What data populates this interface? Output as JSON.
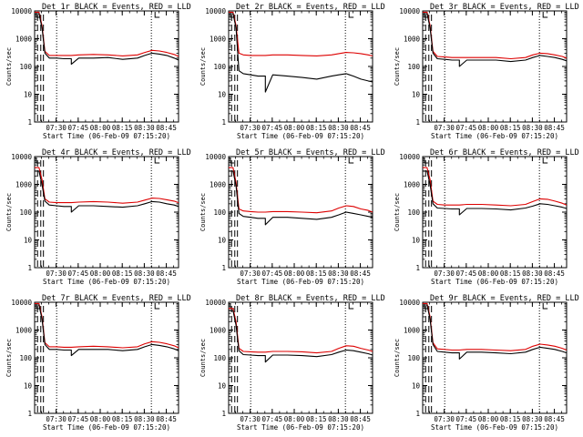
{
  "colors": {
    "events": "#000000",
    "lld": "#dd0000",
    "background": "#ffffff",
    "axis": "#000000"
  },
  "common": {
    "ylabel": "Counts/sec",
    "xlabel": "Start Time (06-Feb-09 07:15:20)",
    "x_tick_labels": [
      "07:30",
      "07:45",
      "08:00",
      "08:15",
      "08:30",
      "08:45"
    ],
    "y_tick_labels": [
      "1",
      "10",
      "100",
      "1000",
      "10000"
    ]
  },
  "chart_data": [
    {
      "type": "line",
      "title": "Det 1r BLACK = Events, RED = LLD",
      "scale": "log",
      "ylim": [
        1,
        10000
      ],
      "xlim": [
        "07:15",
        "08:53"
      ],
      "x_minutes": [
        0,
        3,
        5,
        7,
        10,
        15,
        20,
        25,
        30,
        40,
        50,
        60,
        70,
        75,
        80,
        85,
        90,
        95,
        98
      ],
      "series": [
        {
          "name": "Events",
          "color": "#000000",
          "values": [
            8000,
            8000,
            2500,
            300,
            200,
            200,
            190,
            120,
            200,
            200,
            210,
            180,
            200,
            250,
            300,
            280,
            250,
            200,
            170
          ]
        },
        {
          "name": "LLD",
          "color": "#dd0000",
          "values": [
            9000,
            9000,
            3000,
            350,
            250,
            250,
            250,
            250,
            260,
            270,
            260,
            240,
            260,
            320,
            380,
            360,
            320,
            270,
            230
          ]
        }
      ]
    },
    {
      "type": "line",
      "title": "Det 2r BLACK = Events, RED = LLD",
      "scale": "log",
      "ylim": [
        1,
        10000
      ],
      "xlim": [
        "07:15",
        "08:53"
      ],
      "x_minutes": [
        0,
        3,
        5,
        7,
        10,
        15,
        20,
        25,
        30,
        40,
        50,
        60,
        70,
        75,
        80,
        85,
        90,
        95,
        98
      ],
      "series": [
        {
          "name": "Events",
          "color": "#000000",
          "values": [
            8000,
            8000,
            2500,
            70,
            55,
            50,
            45,
            12,
            50,
            45,
            40,
            35,
            45,
            50,
            55,
            45,
            35,
            30,
            28
          ]
        },
        {
          "name": "LLD",
          "color": "#dd0000",
          "values": [
            9000,
            9000,
            3000,
            300,
            260,
            250,
            250,
            250,
            260,
            260,
            250,
            240,
            260,
            290,
            320,
            310,
            290,
            260,
            240
          ]
        }
      ]
    },
    {
      "type": "line",
      "title": "Det 3r BLACK = Events, RED = LLD",
      "scale": "log",
      "ylim": [
        1,
        10000
      ],
      "xlim": [
        "07:15",
        "08:53"
      ],
      "x_minutes": [
        0,
        3,
        5,
        7,
        10,
        15,
        20,
        25,
        30,
        40,
        50,
        60,
        70,
        75,
        80,
        85,
        90,
        95,
        98
      ],
      "series": [
        {
          "name": "Events",
          "color": "#000000",
          "values": [
            8000,
            8000,
            2500,
            300,
            190,
            180,
            170,
            100,
            170,
            170,
            170,
            150,
            170,
            210,
            250,
            230,
            210,
            180,
            160
          ]
        },
        {
          "name": "LLD",
          "color": "#dd0000",
          "values": [
            9000,
            9000,
            3000,
            350,
            230,
            220,
            210,
            210,
            210,
            210,
            210,
            190,
            210,
            260,
            300,
            290,
            260,
            230,
            200
          ]
        }
      ]
    },
    {
      "type": "line",
      "title": "Det 4r BLACK = Events, RED = LLD",
      "scale": "log",
      "ylim": [
        1,
        10000
      ],
      "xlim": [
        "07:15",
        "08:53"
      ],
      "x_minutes": [
        0,
        3,
        5,
        7,
        10,
        15,
        20,
        25,
        30,
        40,
        50,
        60,
        70,
        75,
        80,
        85,
        90,
        95,
        98
      ],
      "series": [
        {
          "name": "Events",
          "color": "#000000",
          "values": [
            3000,
            3000,
            1000,
            250,
            180,
            170,
            160,
            100,
            170,
            170,
            160,
            150,
            170,
            200,
            240,
            230,
            200,
            180,
            160
          ]
        },
        {
          "name": "LLD",
          "color": "#dd0000",
          "values": [
            4000,
            4000,
            1500,
            300,
            230,
            220,
            220,
            220,
            230,
            240,
            230,
            210,
            230,
            270,
            320,
            310,
            280,
            250,
            220
          ]
        }
      ]
    },
    {
      "type": "line",
      "title": "Det 5r BLACK = Events, RED = LLD",
      "scale": "log",
      "ylim": [
        1,
        10000
      ],
      "xlim": [
        "07:15",
        "08:53"
      ],
      "x_minutes": [
        0,
        3,
        5,
        7,
        10,
        15,
        20,
        25,
        30,
        40,
        50,
        60,
        70,
        75,
        80,
        85,
        90,
        95,
        98
      ],
      "series": [
        {
          "name": "Events",
          "color": "#000000",
          "values": [
            3000,
            3000,
            900,
            90,
            70,
            65,
            60,
            35,
            65,
            65,
            60,
            55,
            65,
            80,
            100,
            90,
            80,
            70,
            65
          ]
        },
        {
          "name": "LLD",
          "color": "#dd0000",
          "values": [
            4000,
            4000,
            1200,
            130,
            110,
            105,
            100,
            100,
            105,
            105,
            100,
            95,
            110,
            140,
            170,
            160,
            130,
            115,
            100
          ]
        }
      ]
    },
    {
      "type": "line",
      "title": "Det 6r BLACK = Events, RED = LLD",
      "scale": "log",
      "ylim": [
        1,
        10000
      ],
      "xlim": [
        "07:15",
        "08:53"
      ],
      "x_minutes": [
        0,
        3,
        5,
        7,
        10,
        15,
        20,
        25,
        30,
        40,
        50,
        60,
        70,
        75,
        80,
        85,
        90,
        95,
        98
      ],
      "series": [
        {
          "name": "Events",
          "color": "#000000",
          "values": [
            3000,
            3000,
            1000,
            200,
            140,
            135,
            130,
            80,
            135,
            135,
            130,
            120,
            140,
            165,
            200,
            190,
            170,
            150,
            135
          ]
        },
        {
          "name": "LLD",
          "color": "#dd0000",
          "values": [
            4000,
            4000,
            1500,
            250,
            190,
            180,
            180,
            180,
            190,
            190,
            180,
            170,
            190,
            240,
            300,
            290,
            250,
            210,
            180
          ]
        }
      ]
    },
    {
      "type": "line",
      "title": "Det 7r BLACK = Events, RED = LLD",
      "scale": "log",
      "ylim": [
        1,
        10000
      ],
      "xlim": [
        "07:15",
        "08:53"
      ],
      "x_minutes": [
        0,
        3,
        5,
        7,
        10,
        15,
        20,
        25,
        30,
        40,
        50,
        60,
        70,
        75,
        80,
        85,
        90,
        95,
        98
      ],
      "series": [
        {
          "name": "Events",
          "color": "#000000",
          "values": [
            8000,
            8000,
            2500,
            300,
            200,
            200,
            190,
            120,
            200,
            200,
            200,
            180,
            200,
            250,
            300,
            280,
            250,
            210,
            180
          ]
        },
        {
          "name": "LLD",
          "color": "#dd0000",
          "values": [
            9000,
            9000,
            3000,
            350,
            250,
            250,
            240,
            240,
            250,
            260,
            250,
            230,
            250,
            320,
            380,
            360,
            320,
            270,
            230
          ]
        }
      ]
    },
    {
      "type": "line",
      "title": "Det 8r BLACK = Events, RED = LLD",
      "scale": "log",
      "ylim": [
        1,
        10000
      ],
      "xlim": [
        "07:15",
        "08:53"
      ],
      "x_minutes": [
        0,
        3,
        5,
        7,
        10,
        15,
        20,
        25,
        30,
        40,
        50,
        60,
        70,
        75,
        80,
        85,
        90,
        95,
        98
      ],
      "series": [
        {
          "name": "Events",
          "color": "#000000",
          "values": [
            5000,
            5000,
            1500,
            180,
            130,
            125,
            120,
            70,
            125,
            125,
            120,
            110,
            130,
            160,
            190,
            180,
            160,
            140,
            125
          ]
        },
        {
          "name": "LLD",
          "color": "#dd0000",
          "values": [
            6000,
            6000,
            2000,
            220,
            170,
            165,
            160,
            160,
            170,
            170,
            165,
            150,
            170,
            220,
            270,
            260,
            220,
            190,
            170
          ]
        }
      ]
    },
    {
      "type": "line",
      "title": "Det 9r BLACK = Events, RED = LLD",
      "scale": "log",
      "ylim": [
        1,
        10000
      ],
      "xlim": [
        "07:15",
        "08:53"
      ],
      "x_minutes": [
        0,
        3,
        5,
        7,
        10,
        15,
        20,
        25,
        30,
        40,
        50,
        60,
        70,
        75,
        80,
        85,
        90,
        95,
        98
      ],
      "series": [
        {
          "name": "Events",
          "color": "#000000",
          "values": [
            8000,
            8000,
            2500,
            300,
            170,
            160,
            150,
            90,
            160,
            160,
            150,
            140,
            160,
            200,
            240,
            220,
            200,
            170,
            150
          ]
        },
        {
          "name": "LLD",
          "color": "#dd0000",
          "values": [
            9000,
            9000,
            3000,
            350,
            210,
            200,
            190,
            190,
            200,
            200,
            190,
            180,
            200,
            260,
            310,
            290,
            260,
            220,
            190
          ]
        }
      ]
    }
  ]
}
